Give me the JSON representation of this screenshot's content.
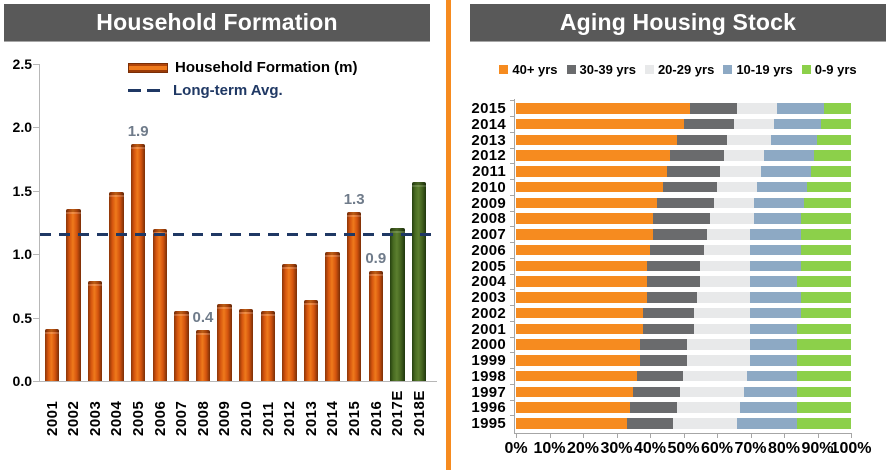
{
  "left_panel": {
    "title": "Household Formation",
    "legend": {
      "bar_label": "Household Formation (m)",
      "avg_label": "Long-term Avg."
    }
  },
  "right_panel": {
    "title": "Aging Housing Stock"
  },
  "colors": {
    "header_bg": "#595959",
    "divider_orange": "#F68B1F",
    "bar_orange": "#E3650F",
    "bar_green": "#4A6B22",
    "avg_line_navy": "#1F3864",
    "value_label_gray": "#6F7B8A",
    "axis_gray": "#B7B7B7",
    "stack_orange": "#F68B1F",
    "stack_dark_gray": "#6A6B6D",
    "stack_light_gray": "#E8E9EA",
    "stack_blue": "#8DA9C4",
    "stack_green": "#8CD04A"
  },
  "chart_data": [
    {
      "type": "bar",
      "title": "Household Formation",
      "xlabel": "",
      "ylabel": "",
      "ylim": [
        0,
        2.5
      ],
      "yticks": [
        "0.0",
        "0.5",
        "1.0",
        "1.5",
        "2.0",
        "2.5"
      ],
      "grid": false,
      "legend_position": "upper-center-inside",
      "legend": [
        "Household Formation (m)",
        "Long-term Avg."
      ],
      "categories": [
        "2001",
        "2002",
        "2003",
        "2004",
        "2005",
        "2006",
        "2007",
        "2008",
        "2009",
        "2010",
        "2011",
        "2012",
        "2013",
        "2014",
        "2015",
        "2016",
        "2017E",
        "2018E"
      ],
      "values": [
        0.41,
        1.36,
        0.79,
        1.49,
        1.87,
        1.2,
        0.55,
        0.4,
        0.61,
        0.57,
        0.55,
        0.92,
        0.64,
        1.02,
        1.33,
        0.87,
        1.21,
        1.57
      ],
      "estimate_categories": [
        "2017E",
        "2018E"
      ],
      "data_labels": [
        {
          "category": "2005",
          "text": "1.9"
        },
        {
          "category": "2008",
          "text": "0.4"
        },
        {
          "category": "2015",
          "text": "1.3"
        },
        {
          "category": "2016",
          "text": "0.9"
        }
      ],
      "long_term_avg": 1.16
    },
    {
      "type": "bar",
      "orientation": "horizontal-stacked",
      "title": "Aging Housing Stock",
      "xlabel": "",
      "ylabel": "",
      "xlim": [
        0,
        100
      ],
      "xticks": [
        "0%",
        "10%",
        "20%",
        "30%",
        "40%",
        "50%",
        "60%",
        "70%",
        "80%",
        "90%",
        "100%"
      ],
      "grid": false,
      "legend_position": "top",
      "categories": [
        "2015",
        "2014",
        "2013",
        "2012",
        "2011",
        "2010",
        "2009",
        "2008",
        "2007",
        "2006",
        "2005",
        "2004",
        "2003",
        "2002",
        "2001",
        "2000",
        "1999",
        "1998",
        "1997",
        "1996",
        "1995"
      ],
      "series": [
        {
          "name": "40+ yrs",
          "color_key": "stack_orange",
          "values": [
            52,
            50,
            48,
            46,
            45,
            44,
            42,
            41,
            41,
            40,
            39,
            39,
            39,
            38,
            38,
            37,
            37,
            36,
            35,
            34,
            33
          ]
        },
        {
          "name": "30-39 yrs",
          "color_key": "stack_dark_gray",
          "values": [
            14,
            15,
            15,
            16,
            16,
            16,
            17,
            17,
            16,
            16,
            16,
            16,
            15,
            15,
            15,
            14,
            14,
            14,
            14,
            14,
            14
          ]
        },
        {
          "name": "20-29 yrs",
          "color_key": "stack_light_gray",
          "values": [
            12,
            12,
            13,
            12,
            12,
            12,
            12,
            13,
            13,
            14,
            15,
            15,
            16,
            17,
            17,
            19,
            19,
            19,
            19,
            19,
            19
          ]
        },
        {
          "name": "10-19 yrs",
          "color_key": "stack_blue",
          "values": [
            14,
            14,
            14,
            15,
            15,
            15,
            15,
            14,
            15,
            15,
            15,
            14,
            15,
            15,
            14,
            14,
            14,
            15,
            16,
            17,
            18
          ]
        },
        {
          "name": "0-9 yrs",
          "color_key": "stack_green",
          "values": [
            8,
            9,
            10,
            11,
            12,
            13,
            14,
            15,
            15,
            15,
            15,
            16,
            15,
            15,
            16,
            16,
            16,
            16,
            16,
            16,
            16
          ]
        }
      ]
    }
  ]
}
